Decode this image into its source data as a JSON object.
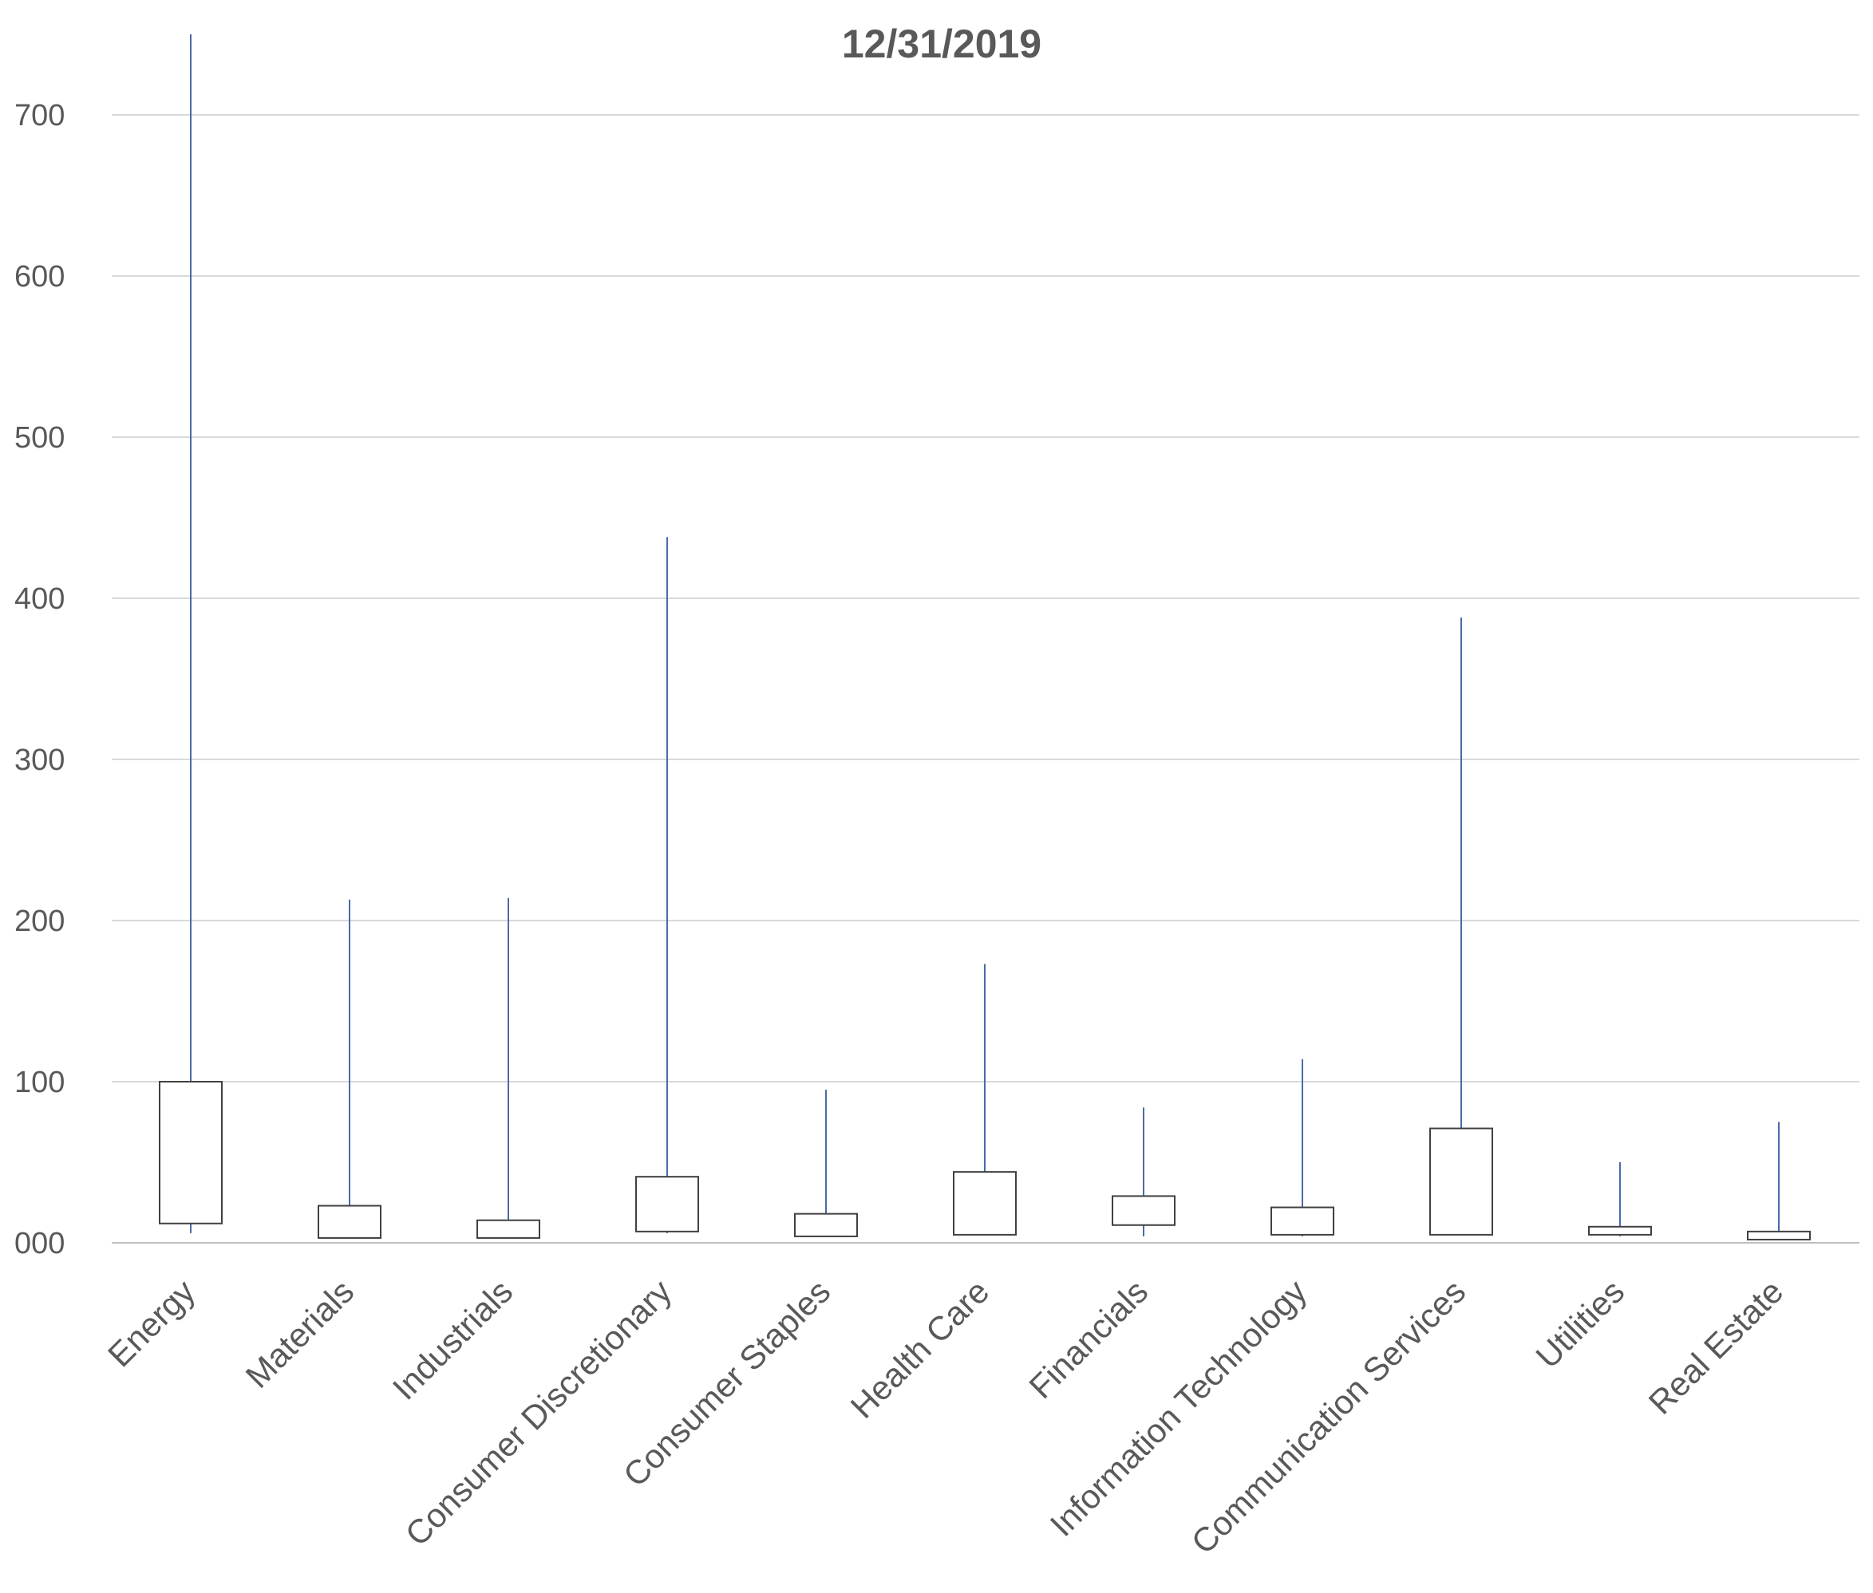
{
  "chart_data": {
    "type": "box",
    "title": "12/31/2019",
    "xlabel": "",
    "ylabel": "",
    "ylim": [
      0,
      750
    ],
    "yticks": [
      0,
      100,
      200,
      300,
      400,
      500,
      600,
      700
    ],
    "ytick_labels": [
      "000",
      "100",
      "200",
      "300",
      "400",
      "500",
      "600",
      "700"
    ],
    "grid": true,
    "categories": [
      "Energy",
      "Materials",
      "Industrials",
      "Consumer Discretionary",
      "Consumer Staples",
      "Health Care",
      "Financials",
      "Information Technology",
      "Communication Services",
      "Utilities",
      "Real Estate"
    ],
    "series": [
      {
        "min": 6,
        "q1": 12,
        "q3": 100,
        "max": 750
      },
      {
        "min": 3,
        "q1": 3,
        "q3": 23,
        "max": 213
      },
      {
        "min": 3,
        "q1": 3,
        "q3": 14,
        "max": 214
      },
      {
        "min": 6,
        "q1": 7,
        "q3": 41,
        "max": 438
      },
      {
        "min": 4,
        "q1": 4,
        "q3": 18,
        "max": 95
      },
      {
        "min": 5,
        "q1": 5,
        "q3": 44,
        "max": 173
      },
      {
        "min": 4,
        "q1": 11,
        "q3": 29,
        "max": 84
      },
      {
        "min": 4,
        "q1": 5,
        "q3": 22,
        "max": 114
      },
      {
        "min": 5,
        "q1": 5,
        "q3": 71,
        "max": 388
      },
      {
        "min": 4,
        "q1": 5,
        "q3": 10,
        "max": 50
      },
      {
        "min": 2,
        "q1": 2,
        "q3": 7,
        "max": 75
      }
    ]
  }
}
